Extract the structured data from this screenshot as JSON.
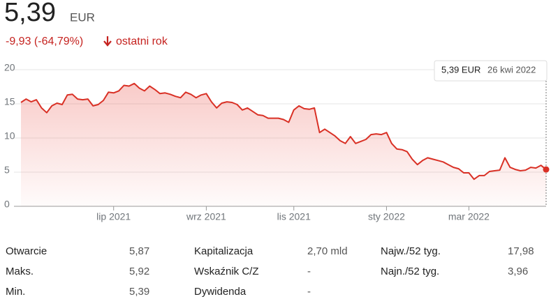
{
  "header": {
    "price": "5,39",
    "currency": "EUR",
    "change": "-9,93 (-64,79%)",
    "period": "ostatni rok"
  },
  "chart_data": {
    "type": "line",
    "color": "#d93025",
    "grid": true,
    "categories": [
      null,
      null,
      null,
      null,
      null,
      null,
      null,
      null,
      null,
      null,
      null,
      null,
      null,
      null,
      null,
      null,
      null,
      null,
      "lip 2021",
      null,
      null,
      null,
      null,
      null,
      null,
      null,
      null,
      null,
      null,
      null,
      null,
      null,
      null,
      null,
      null,
      null,
      "wrz 2021",
      null,
      null,
      null,
      null,
      null,
      null,
      null,
      null,
      null,
      null,
      null,
      null,
      null,
      null,
      null,
      null,
      "lis 2021",
      null,
      null,
      null,
      null,
      null,
      null,
      null,
      null,
      null,
      null,
      null,
      null,
      null,
      null,
      null,
      null,
      null,
      "sty 2022",
      null,
      null,
      null,
      null,
      null,
      null,
      null,
      null,
      null,
      null,
      null,
      null,
      null,
      null,
      null,
      "mar 2022",
      null,
      null,
      null,
      null,
      null,
      null,
      null,
      null,
      null,
      null,
      null,
      null,
      null,
      null,
      null
    ],
    "values": [
      15.2,
      15.7,
      15.3,
      15.6,
      14.4,
      13.7,
      14.7,
      15.1,
      14.9,
      16.3,
      16.4,
      15.7,
      15.6,
      15.7,
      14.7,
      14.9,
      15.5,
      16.7,
      16.6,
      16.9,
      17.7,
      17.6,
      17.98,
      17.3,
      16.9,
      17.6,
      17.1,
      16.5,
      16.6,
      16.4,
      16.1,
      15.9,
      16.7,
      16.4,
      15.9,
      16.3,
      16.5,
      15.3,
      14.4,
      15.1,
      15.3,
      15.2,
      14.9,
      14.1,
      14.4,
      13.9,
      13.4,
      13.3,
      12.9,
      12.9,
      12.9,
      12.7,
      12.3,
      14.1,
      14.7,
      14.3,
      14.2,
      14.4,
      10.8,
      11.3,
      10.8,
      10.3,
      9.6,
      9.2,
      10.2,
      9.2,
      9.5,
      9.8,
      10.5,
      10.6,
      10.5,
      10.8,
      9.2,
      8.4,
      8.3,
      8.0,
      6.9,
      6.1,
      6.7,
      7.1,
      6.9,
      6.7,
      6.5,
      6.1,
      5.7,
      5.5,
      4.9,
      4.9,
      3.96,
      4.5,
      4.5,
      5.1,
      5.2,
      5.3,
      7.1,
      5.7,
      5.4,
      5.2,
      5.3,
      5.7,
      5.6,
      6.0,
      5.39
    ],
    "ylim": [
      0,
      20
    ],
    "yticks": [
      0,
      5,
      10,
      15,
      20
    ]
  },
  "tooltip": {
    "price": "5,39 EUR",
    "date": "26 kwi 2022"
  },
  "stats": [
    [
      [
        "Otwarcie",
        "5,87"
      ],
      [
        "Maks.",
        "5,92"
      ],
      [
        "Min.",
        "5,39"
      ]
    ],
    [
      [
        "Kapitalizacja",
        "2,70 mld"
      ],
      [
        "Wskaźnik C/Z",
        "-"
      ],
      [
        "Dywidenda",
        "-"
      ]
    ],
    [
      [
        "Najw./52 tyg.",
        "17,98"
      ],
      [
        "Najn./52 tyg.",
        "3,96"
      ]
    ]
  ]
}
